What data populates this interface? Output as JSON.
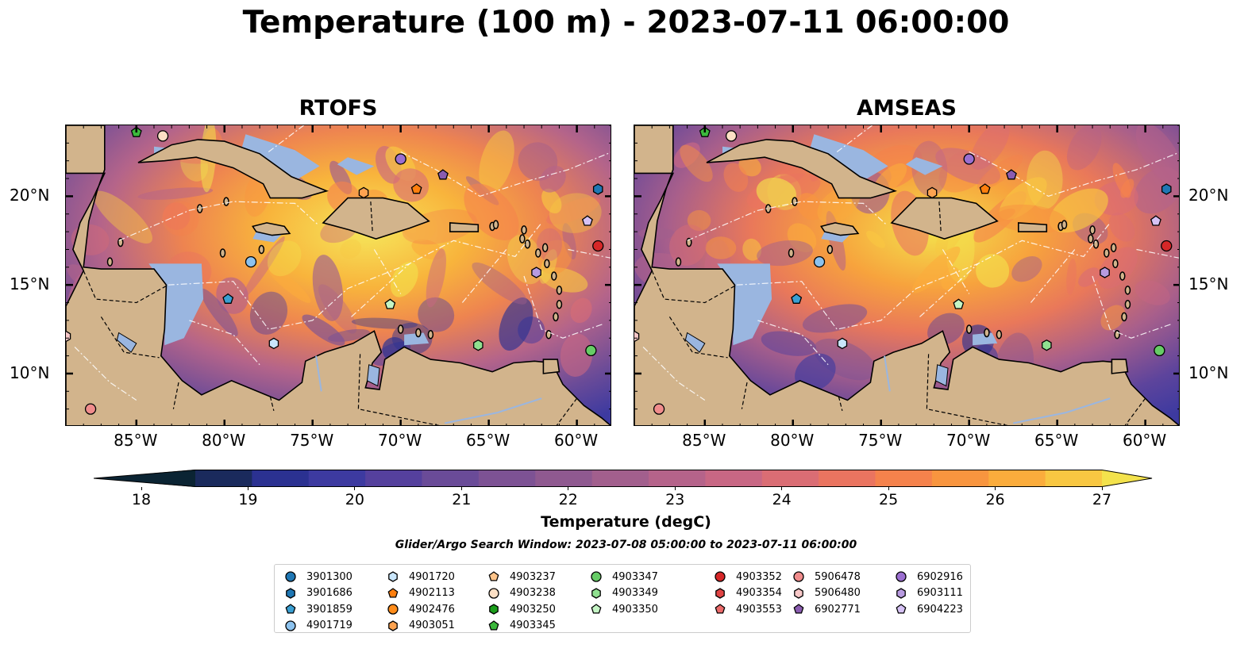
{
  "title": "Temperature (100 m) - 2023-07-11 06:00:00",
  "panels": [
    {
      "title": "RTOFS"
    },
    {
      "title": "AMSEAS"
    }
  ],
  "map": {
    "lon_range": [
      -89,
      -58
    ],
    "lat_range": [
      7,
      24
    ],
    "lon_ticks": [
      -85,
      -80,
      -75,
      -70,
      -65,
      -60
    ],
    "lon_labels": [
      "85°W",
      "80°W",
      "75°W",
      "70°W",
      "65°W",
      "60°W"
    ],
    "lat_ticks": [
      10,
      15,
      20
    ],
    "lat_labels": [
      "10°N",
      "15°N",
      "20°N"
    ],
    "colors": {
      "land": "#d2b48c",
      "ocean_shallow": "#9ab6e0",
      "coast": "#000000"
    }
  },
  "colorbar": {
    "label": "Temperature (degC)",
    "min": 17.5,
    "max": 27.5,
    "ticks": [
      "18",
      "19",
      "20",
      "21",
      "22",
      "23",
      "24",
      "25",
      "26",
      "27"
    ],
    "colors": [
      "#0b2433",
      "#1a2a5c",
      "#2b3191",
      "#3d3aa0",
      "#55409d",
      "#6a4b98",
      "#7d5294",
      "#8f5990",
      "#a25f8d",
      "#b5638a",
      "#c86784",
      "#da6d74",
      "#ea7460",
      "#f5824c",
      "#f8953f",
      "#fbac3c",
      "#f8c742",
      "#f3e24c"
    ]
  },
  "search_window": "Glider/Argo Search Window: 2023-07-08 05:00:00 to 2023-07-11 06:00:00",
  "floats": [
    {
      "id": "3901300",
      "marker": "circle",
      "color": "#1f77b4",
      "lon": null,
      "lat": null
    },
    {
      "id": "3901686",
      "marker": "hexagon",
      "color": "#1f77b4",
      "lon": -58.8,
      "lat": 20.4
    },
    {
      "id": "3901859",
      "marker": "pentagon",
      "color": "#3a9fd2",
      "lon": -79.8,
      "lat": 14.2
    },
    {
      "id": "4901719",
      "marker": "circle",
      "color": "#8cc2ee",
      "lon": -78.5,
      "lat": 16.3
    },
    {
      "id": "4901720",
      "marker": "hexagon",
      "color": "#c9e6fb",
      "lon": -77.2,
      "lat": 11.7
    },
    {
      "id": "4902113",
      "marker": "pentagon",
      "color": "#ff7f0e",
      "lon": -69.1,
      "lat": 20.4
    },
    {
      "id": "4902476",
      "marker": "circle",
      "color": "#ff8c1a",
      "lon": null,
      "lat": null
    },
    {
      "id": "4903051",
      "marker": "hexagon",
      "color": "#ffa350",
      "lon": -72.1,
      "lat": 20.2
    },
    {
      "id": "4903237",
      "marker": "pentagon",
      "color": "#ffc48a",
      "lon": null,
      "lat": null
    },
    {
      "id": "4903238",
      "marker": "circle",
      "color": "#fde0c5",
      "lon": -83.5,
      "lat": 23.4
    },
    {
      "id": "4903250",
      "marker": "hexagon",
      "color": "#1b9e1b",
      "lon": null,
      "lat": null
    },
    {
      "id": "4903345",
      "marker": "pentagon",
      "color": "#3cb83c",
      "lon": -85.0,
      "lat": 23.6
    },
    {
      "id": "4903347",
      "marker": "circle",
      "color": "#66cc66",
      "lon": -59.2,
      "lat": 11.3
    },
    {
      "id": "4903349",
      "marker": "hexagon",
      "color": "#90e090",
      "lon": -65.6,
      "lat": 11.6
    },
    {
      "id": "4903350",
      "marker": "pentagon",
      "color": "#c5f5c5",
      "lon": -70.6,
      "lat": 13.9
    },
    {
      "id": "4903352",
      "marker": "circle",
      "color": "#d62728",
      "lon": -58.8,
      "lat": 17.2
    },
    {
      "id": "4903354",
      "marker": "hexagon",
      "color": "#e04444",
      "lon": null,
      "lat": null
    },
    {
      "id": "4903553",
      "marker": "pentagon",
      "color": "#ec6a6a",
      "lon": null,
      "lat": null
    },
    {
      "id": "5906478",
      "marker": "circle",
      "color": "#f08c8c",
      "lon": -87.6,
      "lat": 8.0
    },
    {
      "id": "5906480",
      "marker": "hexagon",
      "color": "#f8c8c8",
      "lon": -89.0,
      "lat": 12.1
    },
    {
      "id": "6902771",
      "marker": "pentagon",
      "color": "#8a5cb0",
      "lon": -67.6,
      "lat": 21.2
    },
    {
      "id": "6902916",
      "marker": "circle",
      "color": "#9b6fd0",
      "lon": -70.0,
      "lat": 22.1
    },
    {
      "id": "6903111",
      "marker": "hexagon",
      "color": "#b89be0",
      "lon": -62.3,
      "lat": 15.7
    },
    {
      "id": "6904223",
      "marker": "pentagon",
      "color": "#d6c2f5",
      "lon": -59.4,
      "lat": 18.6
    }
  ]
}
